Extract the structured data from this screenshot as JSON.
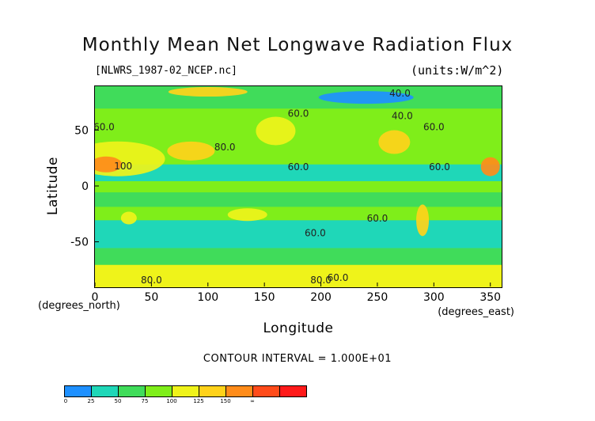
{
  "header": {
    "title": "Monthly Mean Net Longwave Radiation Flux",
    "subtitle": "[NLWRS_1987-02_NCEP.nc]",
    "units": "(units:W/m^2)"
  },
  "footer": {
    "contour_interval": "CONTOUR INTERVAL = 1.000E+01"
  },
  "colorbar": {
    "colors": [
      "#1e90ff",
      "#1fd7b8",
      "#40dc5a",
      "#7fee1a",
      "#eff31a",
      "#ffd21a",
      "#ff8c1a",
      "#ff4b1a",
      "#ff1a1a"
    ],
    "labels": [
      "0",
      "25",
      "50",
      "75",
      "100",
      "125",
      "150",
      "∞"
    ]
  },
  "chart_data": {
    "type": "heatmap",
    "title": "Monthly Mean Net Longwave Radiation Flux",
    "subtitle": "[NLWRS_1987-02_NCEP.nc]",
    "units": "(units:W/m^2)",
    "xlabel": "Longitude",
    "ylabel": "Latitude",
    "x_unit_label": "(degrees_east)",
    "y_unit_label": "(degrees_north)",
    "xlim": [
      0,
      360
    ],
    "ylim": [
      -90,
      90
    ],
    "x_ticks": [
      0,
      50,
      100,
      150,
      200,
      250,
      300,
      350
    ],
    "y_ticks": [
      -50,
      0,
      50
    ],
    "contour_interval": 10,
    "contour_labels": [
      {
        "lon": 8,
        "lat": 50,
        "text": "60.0"
      },
      {
        "lon": 270,
        "lat": 80,
        "text": "40.0"
      },
      {
        "lon": 272,
        "lat": 60,
        "text": "40.0"
      },
      {
        "lon": 300,
        "lat": 50,
        "text": "60.0"
      },
      {
        "lon": 180,
        "lat": 62,
        "text": "60.0"
      },
      {
        "lon": 115,
        "lat": 32,
        "text": "80.0"
      },
      {
        "lon": 25,
        "lat": 15,
        "text": "100"
      },
      {
        "lon": 180,
        "lat": 14,
        "text": "60.0"
      },
      {
        "lon": 305,
        "lat": 14,
        "text": "60.0"
      },
      {
        "lon": 250,
        "lat": -32,
        "text": "60.0"
      },
      {
        "lon": 195,
        "lat": -45,
        "text": "60.0"
      },
      {
        "lon": 50,
        "lat": -87,
        "text": "80.0"
      },
      {
        "lon": 200,
        "lat": -87,
        "text": "80.0"
      },
      {
        "lon": 215,
        "lat": -85,
        "text": "60.0"
      }
    ],
    "color_levels": [
      0,
      25,
      50,
      75,
      100,
      125,
      150
    ]
  }
}
